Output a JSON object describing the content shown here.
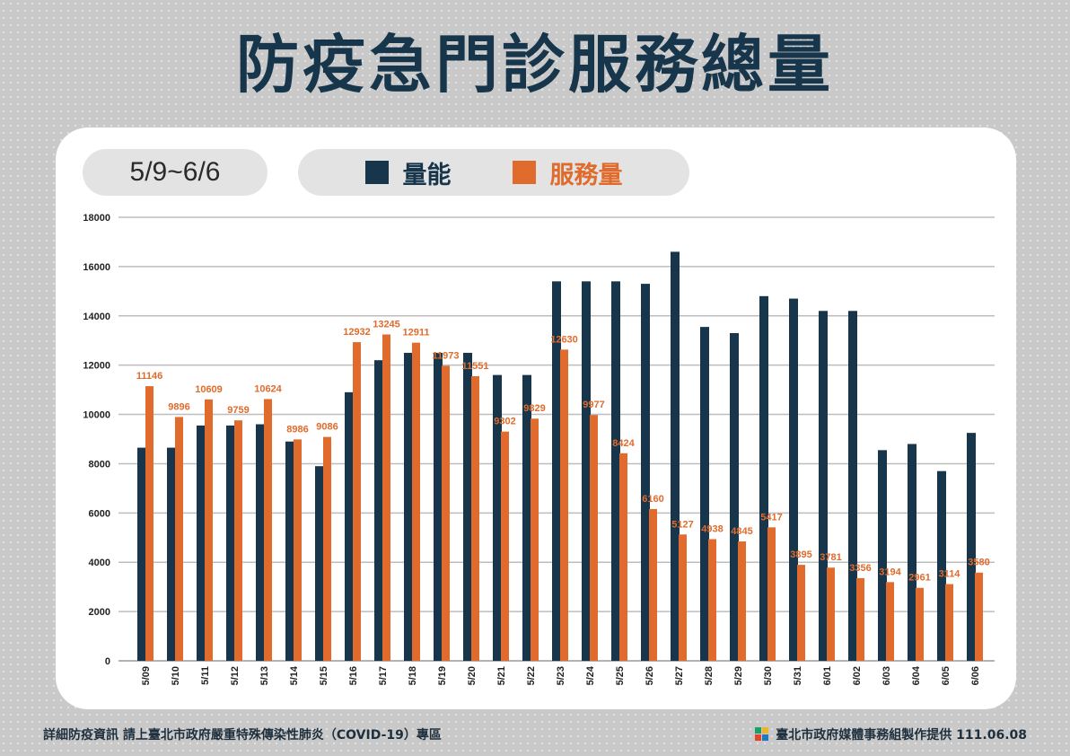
{
  "title": "防疫急門診服務總量",
  "date_range": "5/9~6/6",
  "footer_left": "詳細防疫資訊 請上臺北市政府嚴重特殊傳染性肺炎（COVID-19）專區",
  "footer_right": "臺北市政府媒體事務組製作提供 111.06.08",
  "colors": {
    "capacity": "#17364b",
    "service": "#e06b2c",
    "title": "#17364b"
  },
  "chart_data": {
    "type": "bar",
    "categories": [
      "5/09",
      "5/10",
      "5/11",
      "5/12",
      "5/13",
      "5/14",
      "5/15",
      "5/16",
      "5/17",
      "5/18",
      "5/19",
      "5/20",
      "5/21",
      "5/22",
      "5/23",
      "5/24",
      "5/25",
      "5/26",
      "5/27",
      "5/28",
      "5/29",
      "5/30",
      "5/31",
      "6/01",
      "6/02",
      "6/03",
      "6/04",
      "6/05",
      "6/06"
    ],
    "series": [
      {
        "name": "量能",
        "values": [
          8650,
          8650,
          9550,
          9550,
          9600,
          8900,
          7900,
          10900,
          12200,
          12500,
          12500,
          12500,
          11600,
          11600,
          15400,
          15400,
          15400,
          15300,
          16600,
          13550,
          13300,
          14800,
          14700,
          14200,
          14200,
          8550,
          8800,
          7700,
          9250
        ]
      },
      {
        "name": "服務量",
        "values": [
          11146,
          9896,
          10609,
          9759,
          10624,
          8986,
          9086,
          12932,
          13245,
          12911,
          11973,
          11551,
          9302,
          9829,
          12630,
          9977,
          8424,
          6160,
          5127,
          4938,
          4845,
          5417,
          3895,
          3781,
          3356,
          3194,
          2961,
          3114,
          3580
        ]
      }
    ],
    "ylim": [
      0,
      18000
    ],
    "yticks": [
      "0",
      "2000",
      "4000",
      "6000",
      "8000",
      "10000",
      "12000",
      "14000",
      "16000",
      "18000"
    ],
    "grid": true,
    "legend": "top"
  }
}
